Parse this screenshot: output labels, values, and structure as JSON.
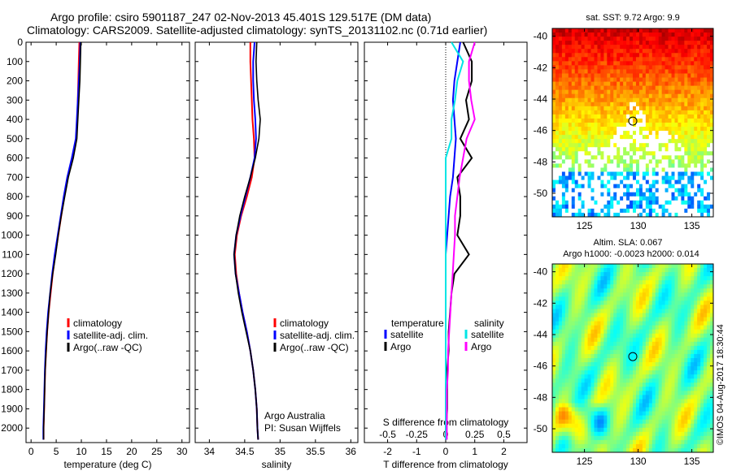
{
  "header": {
    "line1": "Argo profile: csiro 5901187_247 02-Nov-2013 45.401S 129.517E (DM data)",
    "line2": "Climatology: CARS2009. Satellite-adjusted climatology: synTS_20131102.nc (0.71d earlier)"
  },
  "stamp": "©IMOS 04-Aug-2017 18:30:44",
  "colors": {
    "climatology": "#ff0000",
    "satellite": "#0000ff",
    "argo": "#000000",
    "satellite_diff_T": "#0000ff",
    "satellite_diff_S": "#00e5e5",
    "argo_diff_S": "#ff00ff"
  },
  "chart_data": [
    {
      "type": "line",
      "id": "temperature",
      "xlabel": "temperature (deg C)",
      "xlim": [
        -1,
        31.5
      ],
      "xticks": [
        0,
        5,
        10,
        15,
        20,
        25,
        30
      ],
      "ylim": [
        0,
        2075
      ],
      "yticks": [
        0,
        100,
        200,
        300,
        400,
        500,
        600,
        700,
        800,
        900,
        1000,
        1100,
        1200,
        1300,
        1400,
        1500,
        1600,
        1700,
        1800,
        1900,
        2000
      ],
      "legend": [
        "climatology",
        "satellite-adj. clim.",
        "Argo(..raw -QC)"
      ],
      "depth": [
        0,
        100,
        200,
        300,
        400,
        500,
        600,
        700,
        800,
        900,
        1000,
        1100,
        1200,
        1300,
        1400,
        1500,
        1600,
        1700,
        1800,
        1900,
        2000,
        2060
      ],
      "series": [
        {
          "name": "climatology",
          "values": [
            9.6,
            9.5,
            9.4,
            9.3,
            9.2,
            9.0,
            8.2,
            7.3,
            6.6,
            6.0,
            5.4,
            4.8,
            4.3,
            3.9,
            3.5,
            3.2,
            3.0,
            2.8,
            2.7,
            2.6,
            2.5,
            2.5
          ]
        },
        {
          "name": "satellite-adj. clim.",
          "values": [
            9.8,
            9.7,
            9.5,
            9.3,
            9.1,
            8.9,
            8.1,
            7.2,
            6.5,
            5.9,
            5.3,
            4.7,
            4.2,
            3.8,
            3.4,
            3.1,
            2.9,
            2.75,
            2.65,
            2.55,
            2.45,
            2.45
          ]
        },
        {
          "name": "Argo",
          "values": [
            9.9,
            9.8,
            9.7,
            9.5,
            9.3,
            9.1,
            8.4,
            7.4,
            6.7,
            6.0,
            5.4,
            4.9,
            4.3,
            3.8,
            3.5,
            3.2,
            3.0,
            2.8,
            2.7,
            2.6,
            2.5,
            2.5
          ]
        }
      ]
    },
    {
      "type": "line",
      "id": "salinity",
      "xlabel": "salinity",
      "xlim": [
        33.8,
        36.1
      ],
      "xticks": [
        34,
        34.5,
        35,
        35.5,
        36
      ],
      "xticklabels": [
        "34",
        "34.5",
        "35",
        "35.5",
        "36"
      ],
      "ylim": [
        0,
        2075
      ],
      "legend": [
        "climatology",
        "satellite-adj. clim.",
        "Argo(..raw -QC)"
      ],
      "annotation": [
        "Argo Australia",
        "PI: Susan Wijffels"
      ],
      "depth": [
        0,
        100,
        200,
        300,
        400,
        500,
        600,
        700,
        800,
        900,
        1000,
        1100,
        1200,
        1300,
        1400,
        1500,
        1600,
        1700,
        1800,
        1900,
        2000,
        2060
      ],
      "series": [
        {
          "name": "climatology",
          "values": [
            34.58,
            34.58,
            34.59,
            34.6,
            34.61,
            34.63,
            34.64,
            34.6,
            34.53,
            34.45,
            34.39,
            34.36,
            34.38,
            34.42,
            34.47,
            34.53,
            34.58,
            34.62,
            34.65,
            34.67,
            34.68,
            34.69
          ]
        },
        {
          "name": "satellite-adj. clim.",
          "values": [
            34.64,
            34.62,
            34.62,
            34.63,
            34.65,
            34.66,
            34.64,
            34.58,
            34.51,
            34.44,
            34.38,
            34.35,
            34.37,
            34.42,
            34.47,
            34.53,
            34.58,
            34.62,
            34.65,
            34.67,
            34.68,
            34.69
          ]
        },
        {
          "name": "Argo",
          "values": [
            34.67,
            34.66,
            34.67,
            34.69,
            34.72,
            34.7,
            34.65,
            34.58,
            34.5,
            34.43,
            34.38,
            34.35,
            34.37,
            34.41,
            34.46,
            34.52,
            34.58,
            34.62,
            34.65,
            34.67,
            34.68,
            34.69
          ]
        }
      ]
    },
    {
      "type": "line",
      "id": "differences",
      "xlabel": "T difference from climatology",
      "xlabel_top": "S difference from climatology",
      "xlim": [
        -2.8,
        2.8
      ],
      "xticks": [
        -2,
        -1,
        0,
        1,
        2
      ],
      "sxticks": [
        -0.5,
        -0.25,
        0,
        0.25,
        0.5
      ],
      "sxticklabels": [
        "-0.5",
        "-0.25",
        "0",
        "0.25",
        "0.5"
      ],
      "ylim": [
        0,
        2075
      ],
      "legend_groups": [
        {
          "title": "temperature",
          "items": [
            "satellite",
            "Argo"
          ]
        },
        {
          "title": "salinity",
          "items": [
            "satellite",
            "Argo"
          ]
        }
      ],
      "depth": [
        0,
        100,
        200,
        300,
        400,
        500,
        600,
        700,
        800,
        900,
        1000,
        1100,
        1200,
        1300,
        1400,
        1500,
        1600,
        1700,
        1800,
        1900,
        2000,
        2060
      ],
      "series": [
        {
          "name": "T satellite",
          "values": [
            0.5,
            0.4,
            0.3,
            0.25,
            0.3,
            0.35,
            0.3,
            0.25,
            0.15,
            0.1,
            0.05,
            0.0,
            0.0,
            0.0,
            0.0,
            0.0,
            0.0,
            0.0,
            0.0,
            0.0,
            0.0,
            0.0
          ]
        },
        {
          "name": "T Argo",
          "values": [
            0.6,
            0.9,
            0.9,
            0.7,
            0.8,
            0.5,
            0.9,
            0.4,
            0.5,
            0.5,
            0.4,
            0.8,
            0.3,
            0.2,
            0.15,
            0.1,
            0.1,
            0.05,
            0.05,
            0.05,
            0.02,
            0.02
          ]
        },
        {
          "name": "S satellite",
          "values": [
            0.05,
            0.15,
            0.1,
            0.08,
            0.05,
            0.05,
            0.0,
            0.0,
            0.0,
            0.0,
            0.0,
            0.0,
            0.0,
            0.0,
            0.0,
            0.0,
            0.0,
            0.0,
            0.0,
            0.0,
            0.0,
            0.0
          ]
        },
        {
          "name": "S Argo",
          "values": [
            0.25,
            0.2,
            0.2,
            0.22,
            0.25,
            0.18,
            0.15,
            0.12,
            0.1,
            0.08,
            0.08,
            0.07,
            0.06,
            0.05,
            0.04,
            0.03,
            0.02,
            0.02,
            0.01,
            0.01,
            0.01,
            0.01
          ]
        }
      ]
    },
    {
      "type": "heatmap",
      "id": "sst_map",
      "title": "sat. SST: 9.72 Argo: 9.9",
      "xlim": [
        122,
        137
      ],
      "ylim": [
        -51.5,
        -39.5
      ],
      "xticks": [
        125,
        130,
        135
      ],
      "yticks": [
        -40,
        -42,
        -44,
        -46,
        -48,
        -50
      ],
      "marker": {
        "lon": 129.5,
        "lat": -45.4
      }
    },
    {
      "type": "heatmap",
      "id": "sla_map",
      "title": [
        "Altim. SLA: 0.067",
        "Argo h1000: -0.0023 h2000: 0.014"
      ],
      "xlim": [
        122,
        137
      ],
      "ylim": [
        -51.5,
        -39.5
      ],
      "xticks": [
        125,
        130,
        135
      ],
      "yticks": [
        -40,
        -42,
        -44,
        -46,
        -48,
        -50
      ],
      "marker": {
        "lon": 129.5,
        "lat": -45.4
      }
    }
  ]
}
